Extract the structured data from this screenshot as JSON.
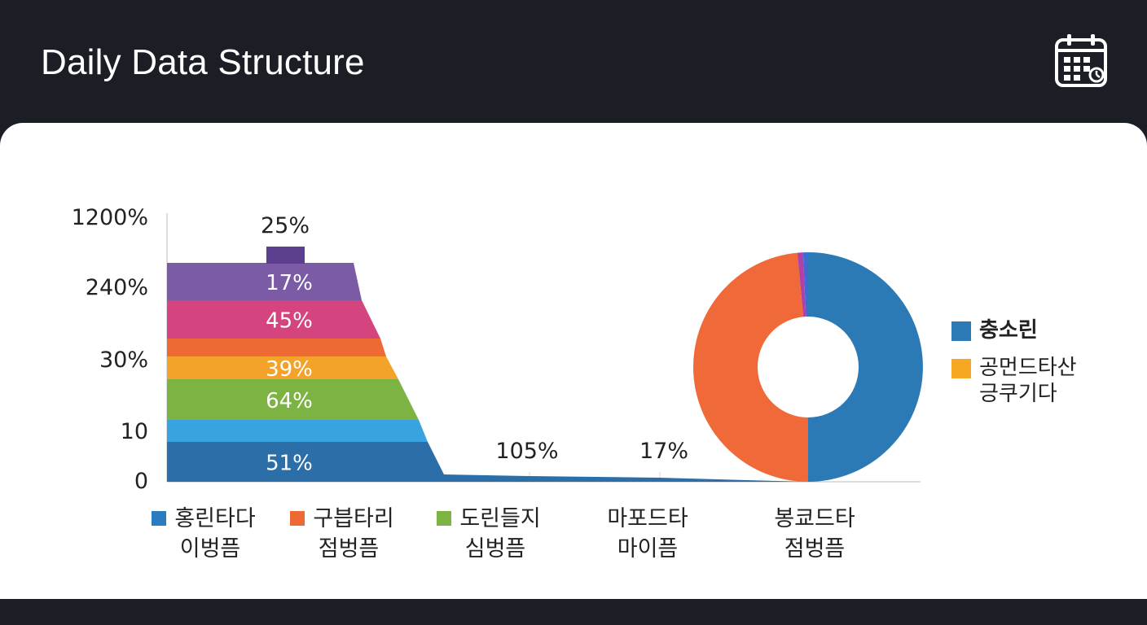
{
  "header": {
    "title": "Daily Data Structure",
    "icon": "calendar-icon"
  },
  "chart_data": [
    {
      "type": "area",
      "y_tick_labels": [
        "1200%",
        "240%",
        "30%",
        "10",
        "0"
      ],
      "layers": [
        {
          "label": "51%",
          "color": "#2b6ea8"
        },
        {
          "label": "",
          "color": "#38a3de"
        },
        {
          "label": "64%",
          "color": "#7cb342"
        },
        {
          "label": "39%",
          "color": "#f3a32a"
        },
        {
          "label": "",
          "color": "#ee6a35"
        },
        {
          "label": "45%",
          "color": "#d4447f"
        },
        {
          "label": "17%",
          "color": "#7b5aa6"
        }
      ],
      "top_block": {
        "label": "25%",
        "color": "#5b3f8e"
      },
      "annotations": [
        "105%",
        "17%"
      ],
      "categories": [
        {
          "line1": "홍린타다",
          "line2": "이벙픔",
          "color": "#2b7bbf"
        },
        {
          "line1": "구븝타리",
          "line2": "점벙픔",
          "color": "#ee6a35"
        },
        {
          "line1": "도린들지",
          "line2": "심벙픔",
          "color": "#7cb342"
        },
        {
          "line1": "마포드타",
          "line2": "마이픔",
          "color": null
        },
        {
          "line1": "봉쿄드타",
          "line2": "점벙픔",
          "color": null
        }
      ]
    },
    {
      "type": "pie",
      "donut": true,
      "slices": [
        {
          "label": "충소린",
          "value": 50,
          "color": "#2c7ab5"
        },
        {
          "label": "공먼드타산\n긍쿠기다",
          "value": 48.5,
          "color": "#ef6a38"
        },
        {
          "label": "",
          "value": 0.8,
          "color": "#b041a8"
        },
        {
          "label": "",
          "value": 0.7,
          "color": "#3f6ad0"
        }
      ]
    }
  ],
  "legend": [
    {
      "label": "충소린",
      "color": "#2c7ab5",
      "bold": true
    },
    {
      "label": "공먼드타산\n긍쿠기다",
      "color": "#f7a823",
      "bold": false
    }
  ]
}
